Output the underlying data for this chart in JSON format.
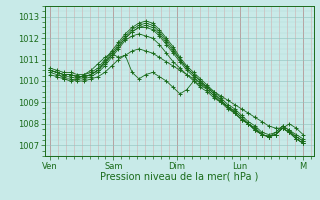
{
  "title": "Pression niveau de la mer( hPa )",
  "bg_color": "#c8eae8",
  "line_color": "#1a6b1a",
  "marker_color": "#1a6b1a",
  "ylim": [
    1006.5,
    1013.5
  ],
  "yticks": [
    1007,
    1008,
    1009,
    1010,
    1011,
    1012,
    1013
  ],
  "x_days": [
    "Ven",
    "Sam",
    "Dim",
    "Lun",
    "M"
  ],
  "x_day_positions": [
    0,
    24,
    48,
    72,
    96
  ],
  "xlim": [
    -2,
    100
  ],
  "series": [
    [
      1010.3,
      1010.2,
      1010.1,
      1010.1,
      1010.0,
      1010.0,
      1010.1,
      1010.2,
      1010.4,
      1010.7,
      1011.0,
      1011.2,
      1011.4,
      1011.5,
      1011.4,
      1011.3,
      1011.1,
      1010.9,
      1010.7,
      1010.5,
      1010.3,
      1010.1,
      1009.9,
      1009.7,
      1009.5,
      1009.3,
      1009.1,
      1008.9,
      1008.7,
      1008.5,
      1008.3,
      1008.1,
      1007.9,
      1007.8,
      1007.8,
      1008.0,
      1007.8,
      1007.5
    ],
    [
      1010.4,
      1010.3,
      1010.2,
      1010.2,
      1010.1,
      1010.1,
      1010.2,
      1010.4,
      1010.7,
      1011.1,
      1011.5,
      1011.9,
      1012.1,
      1012.2,
      1012.1,
      1012.0,
      1011.7,
      1011.3,
      1010.9,
      1010.6,
      1010.3,
      1010.0,
      1009.7,
      1009.5,
      1009.2,
      1009.0,
      1008.7,
      1008.5,
      1008.2,
      1008.0,
      1007.7,
      1007.5,
      1007.4,
      1007.6,
      1007.9,
      1007.7,
      1007.4,
      1007.2
    ],
    [
      1010.5,
      1010.4,
      1010.3,
      1010.3,
      1010.2,
      1010.2,
      1010.3,
      1010.5,
      1010.9,
      1011.3,
      1011.7,
      1012.1,
      1012.4,
      1012.6,
      1012.7,
      1012.6,
      1012.3,
      1011.9,
      1011.5,
      1011.0,
      1010.6,
      1010.3,
      1010.0,
      1009.7,
      1009.4,
      1009.1,
      1008.8,
      1008.6,
      1008.3,
      1008.0,
      1007.8,
      1007.5,
      1007.4,
      1007.5,
      1007.8,
      1007.6,
      1007.4,
      1007.2
    ],
    [
      1010.5,
      1010.4,
      1010.3,
      1010.3,
      1010.2,
      1010.2,
      1010.3,
      1010.5,
      1010.8,
      1011.2,
      1011.6,
      1012.0,
      1012.3,
      1012.5,
      1012.5,
      1012.4,
      1012.1,
      1011.7,
      1011.3,
      1010.9,
      1010.5,
      1010.2,
      1009.9,
      1009.6,
      1009.3,
      1009.0,
      1008.8,
      1008.5,
      1008.2,
      1008.0,
      1007.7,
      1007.5,
      1007.4,
      1007.5,
      1007.8,
      1007.6,
      1007.3,
      1007.1
    ],
    [
      1010.6,
      1010.5,
      1010.4,
      1010.4,
      1010.3,
      1010.3,
      1010.4,
      1010.6,
      1011.0,
      1011.4,
      1011.8,
      1012.2,
      1012.5,
      1012.7,
      1012.8,
      1012.7,
      1012.4,
      1012.0,
      1011.6,
      1011.1,
      1010.7,
      1010.4,
      1010.1,
      1009.8,
      1009.5,
      1009.2,
      1008.9,
      1008.7,
      1008.4,
      1008.1,
      1007.9,
      1007.6,
      1007.5,
      1007.6,
      1007.9,
      1007.7,
      1007.5,
      1007.3
    ],
    [
      1010.5,
      1010.4,
      1010.3,
      1010.3,
      1010.2,
      1010.2,
      1010.3,
      1010.5,
      1010.9,
      1011.2,
      1011.6,
      1012.0,
      1012.3,
      1012.5,
      1012.6,
      1012.5,
      1012.2,
      1011.8,
      1011.4,
      1011.0,
      1010.6,
      1010.3,
      1010.0,
      1009.7,
      1009.4,
      1009.1,
      1008.8,
      1008.6,
      1008.3,
      1008.0,
      1007.8,
      1007.5,
      1007.4,
      1007.5,
      1007.8,
      1007.6,
      1007.3,
      1007.1
    ],
    [
      1010.5,
      1010.4,
      1010.1,
      1010.0,
      1010.1,
      1010.3,
      1010.5,
      1010.8,
      1011.1,
      1011.3,
      1011.1,
      1011.2,
      1010.4,
      1010.1,
      1010.3,
      1010.4,
      1010.2,
      1010.0,
      1009.7,
      1009.4,
      1009.6,
      1010.0,
      1009.8,
      1009.6,
      1009.3,
      1009.0,
      1008.8,
      1008.5,
      1008.2,
      1008.0,
      1007.7,
      1007.5,
      1007.4,
      1007.5,
      1007.8,
      1007.6,
      1007.3,
      1007.1
    ]
  ]
}
